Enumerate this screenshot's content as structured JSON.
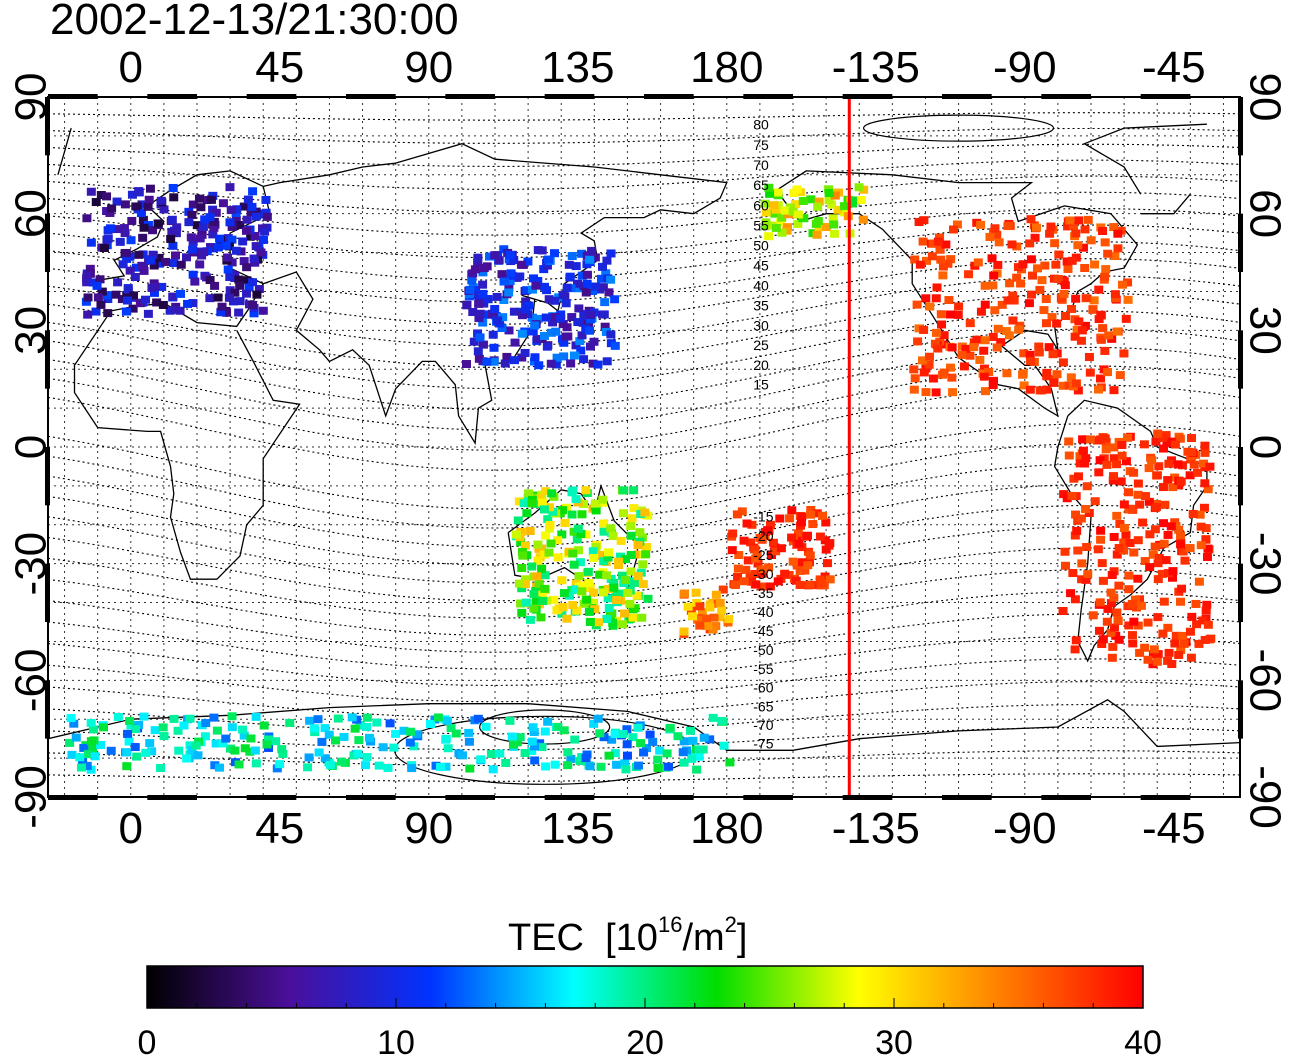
{
  "title": "2002-12-13/21:30:00",
  "axes": {
    "x_ticks": [
      "0",
      "45",
      "90",
      "135",
      "180",
      "-135",
      "-90",
      "-45"
    ],
    "y_ticks": [
      "90",
      "60",
      "30",
      "0",
      "-30",
      "-60",
      "-90"
    ]
  },
  "colorbar": {
    "label_main": "TEC  [10",
    "label_sup": "16",
    "label_unit": "/m",
    "label_sup2": "2",
    "label_end": "]",
    "ticks": [
      "0",
      "10",
      "20",
      "30",
      "40"
    ],
    "min": 0,
    "max": 40,
    "stops": [
      "#000000",
      "#4a0f9a",
      "#0033ff",
      "#00ffff",
      "#00dd00",
      "#ffff00",
      "#ff7f00",
      "#ff0000"
    ]
  },
  "map": {
    "lon_extent": [
      -25,
      335
    ],
    "lat_extent": [
      -90,
      90
    ],
    "terminator_longitude": -143,
    "terminator_color": "#ff0000",
    "contour_labels": [
      "80",
      "75",
      "70",
      "65",
      "60",
      "55",
      "50",
      "45",
      "40",
      "35",
      "30",
      "25",
      "20",
      "15",
      "-15",
      "-20",
      "-25",
      "-30",
      "-35",
      "-40",
      "-45",
      "-50",
      "-55",
      "-60",
      "-65",
      "-70",
      "-75"
    ],
    "tec_regions": [
      {
        "region": "Europe",
        "lon": [
          -15,
          40
        ],
        "lat": [
          35,
          68
        ],
        "value_range": [
          2,
          12
        ]
      },
      {
        "region": "East Asia",
        "lon": [
          100,
          145
        ],
        "lat": [
          22,
          52
        ],
        "value_range": [
          5,
          14
        ]
      },
      {
        "region": "North America",
        "lon": [
          -125,
          -60
        ],
        "lat": [
          15,
          60
        ],
        "value_range": [
          35,
          40
        ]
      },
      {
        "region": "South America",
        "lon": [
          -80,
          -35
        ],
        "lat": [
          -55,
          5
        ],
        "value_range": [
          36,
          40
        ]
      },
      {
        "region": "Australia",
        "lon": [
          115,
          155
        ],
        "lat": [
          -45,
          -10
        ],
        "value_range": [
          18,
          32
        ]
      },
      {
        "region": "New Zealand",
        "lon": [
          165,
          180
        ],
        "lat": [
          -48,
          -35
        ],
        "value_range": [
          30,
          38
        ]
      },
      {
        "region": "Pacific",
        "lon": [
          180,
          210
        ],
        "lat": [
          -35,
          -15
        ],
        "value_range": [
          36,
          40
        ]
      },
      {
        "region": "Alaska",
        "lon": [
          -170,
          -140
        ],
        "lat": [
          55,
          68
        ],
        "value_range": [
          22,
          34
        ]
      },
      {
        "region": "Antarctica",
        "lon": [
          -20,
          180
        ],
        "lat": [
          -82,
          -68
        ],
        "value_range": [
          12,
          22
        ]
      }
    ]
  }
}
